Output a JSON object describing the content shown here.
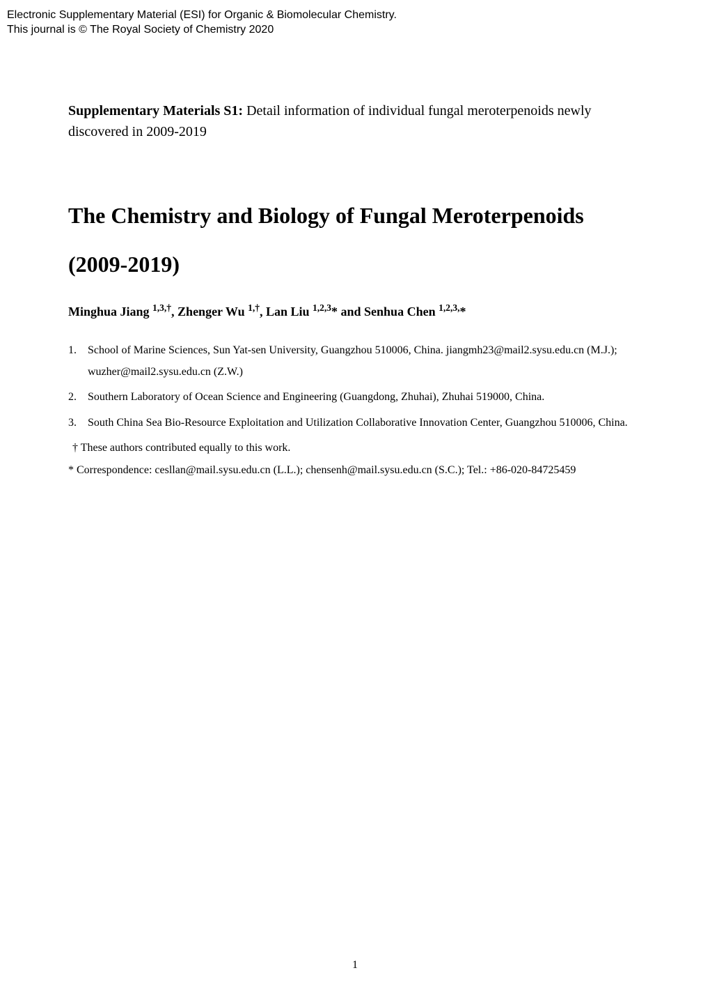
{
  "header": {
    "line1": "Electronic Supplementary Material (ESI) for Organic & Biomolecular Chemistry.",
    "line2": "This journal is © The Royal Society of Chemistry 2020"
  },
  "supplementary": {
    "label": "Supplementary Materials S1: ",
    "desc": "Detail information of individual fungal meroterpenoids newly discovered in 2009-2019"
  },
  "title": {
    "line1": "The Chemistry and Biology of Fungal Meroterpenoids",
    "line2": "(2009-2019)"
  },
  "authors": {
    "a1_name": "Minghua Jiang ",
    "a1_sup": "1,3,†",
    "sep1": ", ",
    "a2_name": "Zhenger Wu ",
    "a2_sup": "1,†",
    "sep2": ", ",
    "a3_name": "Lan Liu ",
    "a3_sup": "1,2,3",
    "a3_star": "*",
    "sep3": " and ",
    "a4_name": "Senhua Chen ",
    "a4_sup": "1,2,3,",
    "a4_star": "*"
  },
  "affiliations": [
    {
      "num": "1.",
      "text": "School of Marine Sciences, Sun Yat-sen University, Guangzhou 510006, China. jiangmh23@mail2.sysu.edu.cn (M.J.); wuzher@mail2.sysu.edu.cn (Z.W.)"
    },
    {
      "num": "2.",
      "text": "Southern Laboratory of Ocean Science and Engineering (Guangdong, Zhuhai), Zhuhai 519000, China."
    },
    {
      "num": "3.",
      "text": "South China Sea Bio-Resource Exploitation and Utilization Collaborative Innovation Center, Guangzhou 510006, China."
    }
  ],
  "notes": {
    "dagger": "† These authors contributed equally to this work.",
    "correspondence": "* Correspondence: cesllan@mail.sysu.edu.cn (L.L.); chensenh@mail.sysu.edu.cn (S.C.); Tel.: +86-020-84725459"
  },
  "page_number": "1",
  "colors": {
    "background": "#ffffff",
    "text": "#000000"
  },
  "typography": {
    "body_font": "Times New Roman",
    "header_font": "Arial",
    "title_fontsize_pt": 24,
    "body_fontsize_pt": 12,
    "authors_fontsize_pt": 14
  }
}
